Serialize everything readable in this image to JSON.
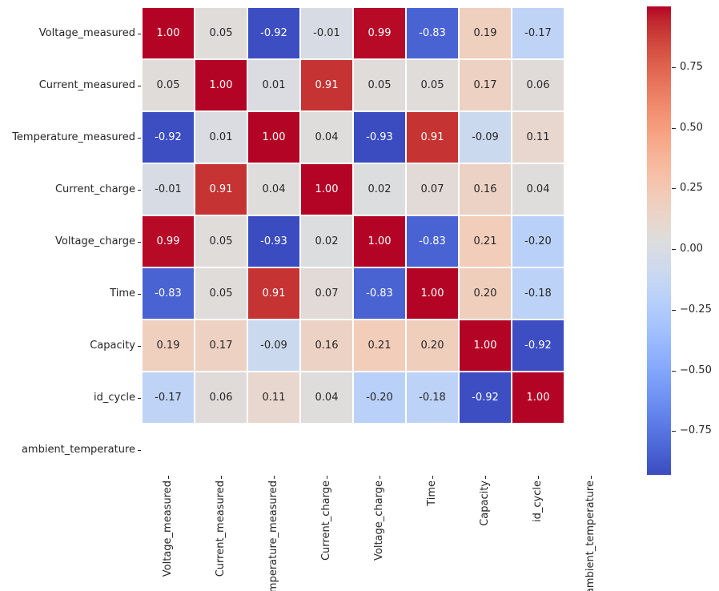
{
  "figure": {
    "description": "Correlation heatmap of battery measurement features",
    "background_color": "#ffffff",
    "text_color": "#262626"
  },
  "chart_data": {
    "type": "heatmap",
    "title": "",
    "colormap": "coolwarm",
    "colormap_colors": {
      "min": "#3b4cc0",
      "mid": "#dddddd",
      "max": "#b40426"
    },
    "grid_line_color": "#ffffff",
    "labels": [
      "Voltage_measured",
      "Current_measured",
      "Temperature_measured",
      "Current_charge",
      "Voltage_charge",
      "Time",
      "Capacity",
      "id_cycle",
      "ambient_temperature"
    ],
    "matrix": [
      [
        1.0,
        0.05,
        -0.92,
        -0.01,
        0.99,
        -0.83,
        0.19,
        -0.17,
        null
      ],
      [
        0.05,
        1.0,
        0.01,
        0.91,
        0.05,
        0.05,
        0.17,
        0.06,
        null
      ],
      [
        -0.92,
        0.01,
        1.0,
        0.04,
        -0.93,
        0.91,
        -0.09,
        0.11,
        null
      ],
      [
        -0.01,
        0.91,
        0.04,
        1.0,
        0.02,
        0.07,
        0.16,
        0.04,
        null
      ],
      [
        0.99,
        0.05,
        -0.93,
        0.02,
        1.0,
        -0.83,
        0.21,
        -0.2,
        null
      ],
      [
        -0.83,
        0.05,
        0.91,
        0.07,
        -0.83,
        1.0,
        0.2,
        -0.18,
        null
      ],
      [
        0.19,
        0.17,
        -0.09,
        0.16,
        0.21,
        0.2,
        1.0,
        -0.92,
        null
      ],
      [
        -0.17,
        0.06,
        0.11,
        0.04,
        -0.2,
        -0.18,
        -0.92,
        1.0,
        null
      ],
      [
        null,
        null,
        null,
        null,
        null,
        null,
        null,
        null,
        null
      ]
    ],
    "vmin": -0.93,
    "vmax": 1.0,
    "cell_value_decimals": 2,
    "annotation_colors": {
      "on_light": "#262626",
      "on_dark": "#ffffff"
    },
    "colorbar": {
      "position": "right",
      "ticks": [
        {
          "label": "0.75",
          "value": 0.75
        },
        {
          "label": "0.50",
          "value": 0.5
        },
        {
          "label": "0.25",
          "value": 0.25
        },
        {
          "label": "0.00",
          "value": 0.0
        },
        {
          "label": "−0.25",
          "value": -0.25
        },
        {
          "label": "−0.50",
          "value": -0.5
        },
        {
          "label": "−0.75",
          "value": -0.75
        }
      ]
    }
  }
}
